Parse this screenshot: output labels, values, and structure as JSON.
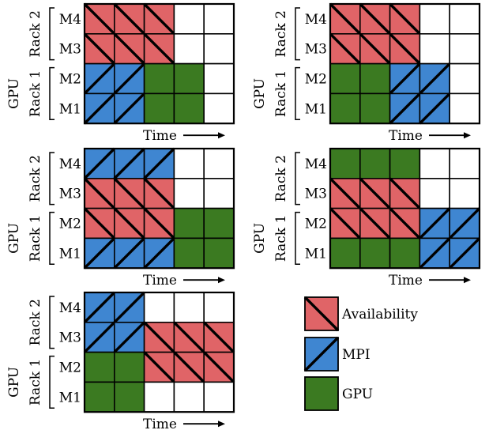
{
  "labels": {
    "gpu": "GPU",
    "time": "Time",
    "racks": [
      "Rack 2",
      "Rack 1"
    ],
    "machines": [
      "M4",
      "M3",
      "M2",
      "M1"
    ]
  },
  "legend": [
    {
      "key": "A",
      "label": "Availability"
    },
    {
      "key": "M",
      "label": "MPI"
    },
    {
      "key": "G",
      "label": "GPU"
    }
  ],
  "colors": {
    "A": "#e06467",
    "M": "#3f86d1",
    "G": "#3b7a21",
    "empty": "#ffffff",
    "line": "#000000"
  },
  "schedules": [
    [
      "AAA..",
      "AAA..",
      "MMGG.",
      "MMGG."
    ],
    [
      "AAA..",
      "AAA..",
      "GGMM.",
      "GGMM."
    ],
    [
      "MMM..",
      "AAA..",
      "AAAGG",
      "MMMGG"
    ],
    [
      "GGG..",
      "AAA..",
      "AAAMM",
      "GGGMM"
    ],
    [
      "MM...",
      "MMAAA",
      "GGAAA",
      "GG..."
    ]
  ]
}
